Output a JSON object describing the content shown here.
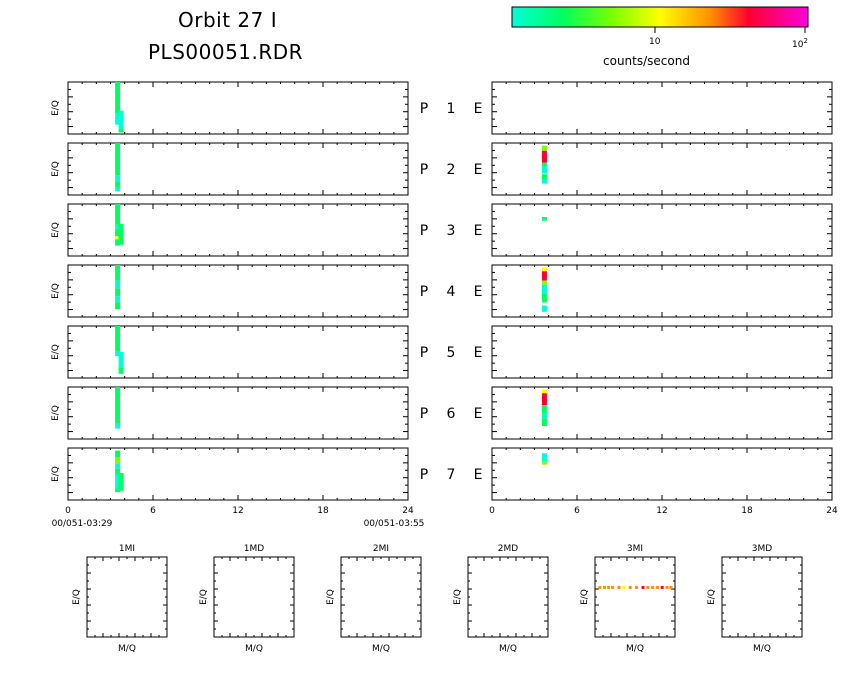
{
  "header": {
    "title_line1": "Orbit 27 I",
    "title_line2": "PLS00051.RDR"
  },
  "colorbar": {
    "colors": [
      "#00ffd8",
      "#00ff60",
      "#7cff00",
      "#ffff00",
      "#ff9000",
      "#ff0030",
      "#ff00dc"
    ],
    "tick_labels": [
      "10",
      "10"
    ],
    "tick_superscript": "2",
    "unit_label": "counts/second"
  },
  "chart_data": {
    "type": "heatmap",
    "ylabel": "E/Q",
    "x_ticks": [
      0,
      6,
      12,
      18,
      24
    ],
    "xlim": [
      0,
      24
    ],
    "time_start_label": "00/051-03:29",
    "time_end_label": "00/051-03:55",
    "row_labels": [
      {
        "p": "P",
        "n": "1",
        "e": "E"
      },
      {
        "p": "P",
        "n": "2",
        "e": "E"
      },
      {
        "p": "P",
        "n": "3",
        "e": "E"
      },
      {
        "p": "P",
        "n": "4",
        "e": "E"
      },
      {
        "p": "P",
        "n": "5",
        "e": "E"
      },
      {
        "p": "P",
        "n": "6",
        "e": "E"
      },
      {
        "p": "P",
        "n": "7",
        "e": "E"
      }
    ],
    "left_panels": [
      [
        {
          "x": 3.5,
          "segs": [
            [
              0,
              0.6,
              "#00ff60"
            ],
            [
              0.6,
              0.82,
              "#00ffd8"
            ]
          ]
        },
        {
          "x": 3.75,
          "segs": [
            [
              0.55,
              0.9,
              "#00ffd8"
            ],
            [
              0.9,
              0.97,
              "#00ff60"
            ]
          ]
        }
      ],
      [
        {
          "x": 3.5,
          "segs": [
            [
              0,
              0.62,
              "#00ff60"
            ],
            [
              0.62,
              0.75,
              "#00ffd8"
            ],
            [
              0.75,
              0.85,
              "#00ff60"
            ],
            [
              0.85,
              0.93,
              "#00ffd8"
            ]
          ]
        }
      ],
      [
        {
          "x": 3.5,
          "segs": [
            [
              0,
              0.4,
              "#00ff60"
            ],
            [
              0.4,
              0.48,
              "#00ffd8"
            ],
            [
              0.48,
              0.62,
              "#00ff60"
            ],
            [
              0.62,
              0.68,
              "#ffff00"
            ],
            [
              0.68,
              0.8,
              "#00ff60"
            ]
          ]
        },
        {
          "x": 3.75,
          "segs": [
            [
              0.38,
              0.78,
              "#00ff60"
            ]
          ]
        }
      ],
      [
        {
          "x": 3.5,
          "segs": [
            [
              0,
              0.3,
              "#00ff60"
            ],
            [
              0.3,
              0.45,
              "#00ffd8"
            ],
            [
              0.45,
              0.6,
              "#00ff60"
            ],
            [
              0.6,
              0.72,
              "#00ffd8"
            ],
            [
              0.72,
              0.85,
              "#00ff60"
            ]
          ]
        }
      ],
      [
        {
          "x": 3.5,
          "segs": [
            [
              0,
              0.48,
              "#00ff60"
            ],
            [
              0.48,
              0.58,
              "#00ffd8"
            ]
          ]
        },
        {
          "x": 3.75,
          "segs": [
            [
              0.5,
              0.8,
              "#00ffd8"
            ],
            [
              0.8,
              0.92,
              "#00ff60"
            ]
          ]
        }
      ],
      [
        {
          "x": 3.5,
          "segs": [
            [
              0,
              0.7,
              "#00ff60"
            ],
            [
              0.7,
              0.8,
              "#00ffd8"
            ]
          ]
        }
      ],
      [
        {
          "x": 3.5,
          "segs": [
            [
              0.05,
              0.18,
              "#00ff60"
            ],
            [
              0.18,
              0.3,
              "#7cff00"
            ],
            [
              0.3,
              0.4,
              "#00ffd8"
            ],
            [
              0.4,
              0.5,
              "#00ff60"
            ],
            [
              0.5,
              0.78,
              "#00ffd8"
            ],
            [
              0.78,
              0.85,
              "#00ff60"
            ]
          ]
        },
        {
          "x": 3.75,
          "segs": [
            [
              0.48,
              0.82,
              "#00ff60"
            ]
          ]
        }
      ]
    ],
    "right_panels": [
      [],
      [
        {
          "x": 3.7,
          "segs": [
            [
              0.05,
              0.15,
              "#7cff00"
            ],
            [
              0.15,
              0.38,
              "#ff0030"
            ],
            [
              0.38,
              0.45,
              "#00ff60"
            ],
            [
              0.45,
              0.58,
              "#00ffd8"
            ],
            [
              0.6,
              0.7,
              "#00ff60"
            ],
            [
              0.7,
              0.78,
              "#00ffd8"
            ]
          ]
        }
      ],
      [
        {
          "x": 3.7,
          "segs": [
            [
              0.25,
              0.32,
              "#00ff60"
            ]
          ]
        }
      ],
      [
        {
          "x": 3.7,
          "segs": [
            [
              0.05,
              0.12,
              "#ffff00"
            ],
            [
              0.12,
              0.3,
              "#ff0030"
            ],
            [
              0.3,
              0.38,
              "#7cff00"
            ],
            [
              0.38,
              0.55,
              "#00ffd8"
            ],
            [
              0.55,
              0.72,
              "#00ff60"
            ],
            [
              0.78,
              0.9,
              "#00ffd8"
            ]
          ]
        }
      ],
      [],
      [
        {
          "x": 3.7,
          "segs": [
            [
              0.05,
              0.12,
              "#ffff00"
            ],
            [
              0.12,
              0.35,
              "#ff0030"
            ],
            [
              0.35,
              0.5,
              "#00ff60"
            ],
            [
              0.5,
              0.6,
              "#00ffd8"
            ],
            [
              0.6,
              0.75,
              "#00ff60"
            ]
          ]
        }
      ],
      [
        {
          "x": 3.7,
          "segs": [
            [
              0.1,
              0.25,
              "#00ffd8"
            ],
            [
              0.25,
              0.32,
              "#7cff00"
            ]
          ]
        }
      ]
    ],
    "mq_panels": [
      {
        "title": "1MI",
        "xlabel": "M/Q",
        "ylabel": "E/Q",
        "points": []
      },
      {
        "title": "1MD",
        "xlabel": "M/Q",
        "ylabel": "E/Q",
        "points": []
      },
      {
        "title": "2MI",
        "xlabel": "M/Q",
        "ylabel": "E/Q",
        "points": []
      },
      {
        "title": "2MD",
        "xlabel": "M/Q",
        "ylabel": "E/Q",
        "points": []
      },
      {
        "title": "3MI",
        "xlabel": "M/Q",
        "ylabel": "E/Q",
        "points": [
          [
            0.06,
            0.38,
            "#ff9000"
          ],
          [
            0.12,
            0.38,
            "#ff9000"
          ],
          [
            0.17,
            0.38,
            "#ff9000"
          ],
          [
            0.22,
            0.38,
            "#ff9000"
          ],
          [
            0.3,
            0.38,
            "#ff9000"
          ],
          [
            0.36,
            0.38,
            "#ffff00"
          ],
          [
            0.44,
            0.38,
            "#ff9000"
          ],
          [
            0.52,
            0.38,
            "#ff9000"
          ],
          [
            0.6,
            0.38,
            "#ff0030"
          ],
          [
            0.66,
            0.38,
            "#ff9000"
          ],
          [
            0.72,
            0.38,
            "#ff9000"
          ],
          [
            0.78,
            0.38,
            "#ff9000"
          ],
          [
            0.84,
            0.38,
            "#ff0030"
          ],
          [
            0.9,
            0.38,
            "#ff9000"
          ],
          [
            0.95,
            0.38,
            "#ff9000"
          ]
        ]
      },
      {
        "title": "3MD",
        "xlabel": "M/Q",
        "ylabel": "E/Q",
        "points": []
      }
    ]
  }
}
